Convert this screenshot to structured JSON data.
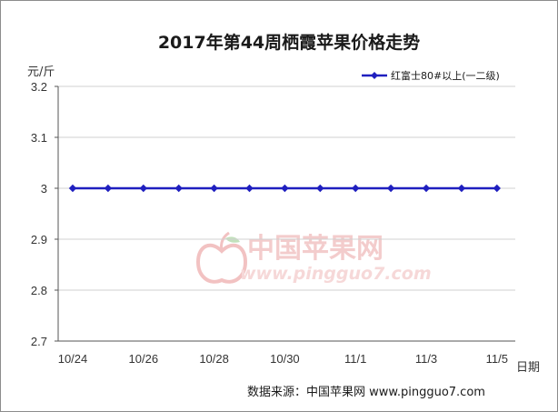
{
  "chart_data": {
    "type": "line",
    "title": "2017年第44周栖霞苹果价格走势",
    "ylabel": "元/斤",
    "xlabel": "日期",
    "ylim": [
      2.7,
      3.2
    ],
    "yticks": [
      "3.2",
      "3.1",
      "3",
      "2.9",
      "2.8",
      "2.7"
    ],
    "ytick_values": [
      3.2,
      3.1,
      3.0,
      2.9,
      2.8,
      2.7
    ],
    "x": [
      "10/24",
      "10/25",
      "10/26",
      "10/27",
      "10/28",
      "10/29",
      "10/30",
      "10/31",
      "11/1",
      "11/2",
      "11/3",
      "11/4",
      "11/5"
    ],
    "xtick_labels": [
      "10/24",
      "10/26",
      "10/28",
      "10/30",
      "11/1",
      "11/3",
      "11/5"
    ],
    "series": [
      {
        "name": "红富士80#以上(一二级)",
        "color": "#1f1fbf",
        "marker": "diamond",
        "values": [
          3,
          3,
          3,
          3,
          3,
          3,
          3,
          3,
          3,
          3,
          3,
          3,
          3
        ]
      }
    ],
    "grid": "horizontal",
    "legend_position": "top-right"
  },
  "source": "数据来源：中国苹果网 www.pingguo7.com",
  "watermark": {
    "name": "中国苹果网",
    "url": "www.pingguo7.com",
    "color": "#e8a0a0"
  }
}
